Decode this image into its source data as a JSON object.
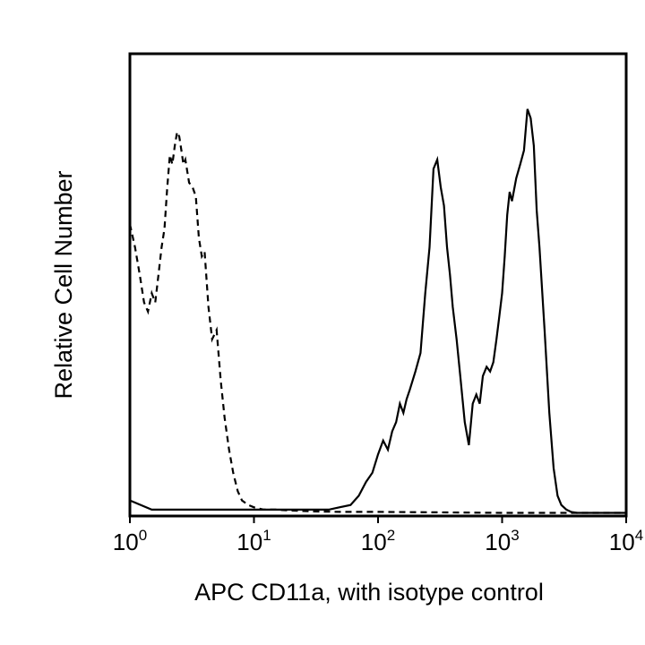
{
  "chart_data": {
    "type": "line",
    "title": "",
    "xlabel": "APC CD11a, with isotype control",
    "ylabel": "Relative Cell Number",
    "x_scale": "log",
    "xlim": [
      1,
      10000
    ],
    "ylim": [
      0,
      1
    ],
    "x_ticks": [
      {
        "value": 1,
        "base": "10",
        "exp": "0"
      },
      {
        "value": 10,
        "base": "10",
        "exp": "1"
      },
      {
        "value": 100,
        "base": "10",
        "exp": "2"
      },
      {
        "value": 1000,
        "base": "10",
        "exp": "3"
      },
      {
        "value": 10000,
        "base": "10",
        "exp": "4"
      }
    ],
    "grid": false,
    "legend": "none",
    "series": [
      {
        "style": "dashed",
        "x": [
          1.0,
          1.1,
          1.2,
          1.3,
          1.4,
          1.5,
          1.6,
          1.7,
          1.8,
          1.9,
          2.0,
          2.1,
          2.2,
          2.3,
          2.4,
          2.5,
          2.6,
          2.7,
          2.8,
          3.0,
          3.2,
          3.4,
          3.6,
          3.8,
          4.0,
          4.3,
          4.6,
          5.0,
          5.4,
          5.8,
          6.3,
          6.8,
          7.4,
          8.0,
          9.0,
          10,
          12,
          15,
          20,
          30,
          50,
          100,
          300,
          1000,
          3000,
          10000
        ],
        "y": [
          0.63,
          0.58,
          0.52,
          0.46,
          0.44,
          0.48,
          0.46,
          0.52,
          0.58,
          0.62,
          0.71,
          0.78,
          0.76,
          0.8,
          0.83,
          0.82,
          0.79,
          0.76,
          0.77,
          0.72,
          0.71,
          0.69,
          0.6,
          0.56,
          0.57,
          0.45,
          0.38,
          0.4,
          0.29,
          0.21,
          0.14,
          0.09,
          0.05,
          0.03,
          0.02,
          0.015,
          0.01,
          0.01,
          0.008,
          0.006,
          0.005,
          0.005,
          0.004,
          0.003,
          0.003,
          0.003
        ]
      },
      {
        "style": "solid",
        "x": [
          1.0,
          1.5,
          2.0,
          3.0,
          5.0,
          10,
          20,
          40,
          60,
          70,
          80,
          90,
          100,
          110,
          120,
          130,
          140,
          150,
          160,
          170,
          180,
          200,
          220,
          240,
          260,
          280,
          300,
          320,
          340,
          360,
          380,
          400,
          430,
          460,
          500,
          540,
          580,
          620,
          660,
          700,
          750,
          800,
          850,
          900,
          950,
          1000,
          1050,
          1100,
          1150,
          1200,
          1300,
          1400,
          1500,
          1600,
          1700,
          1800,
          1900,
          2000,
          2200,
          2400,
          2600,
          2800,
          3000,
          3300,
          3600,
          4000,
          5000,
          10000
        ],
        "y": [
          0.03,
          0.01,
          0.01,
          0.01,
          0.01,
          0.01,
          0.01,
          0.01,
          0.02,
          0.04,
          0.07,
          0.09,
          0.13,
          0.16,
          0.14,
          0.18,
          0.2,
          0.24,
          0.22,
          0.25,
          0.27,
          0.31,
          0.35,
          0.48,
          0.58,
          0.75,
          0.77,
          0.71,
          0.67,
          0.58,
          0.52,
          0.45,
          0.38,
          0.3,
          0.2,
          0.15,
          0.24,
          0.26,
          0.24,
          0.3,
          0.32,
          0.31,
          0.33,
          0.38,
          0.43,
          0.48,
          0.56,
          0.65,
          0.7,
          0.68,
          0.73,
          0.76,
          0.79,
          0.88,
          0.86,
          0.8,
          0.66,
          0.58,
          0.4,
          0.22,
          0.1,
          0.04,
          0.02,
          0.01,
          0.005,
          0.003,
          0.003,
          0.003
        ]
      }
    ]
  }
}
